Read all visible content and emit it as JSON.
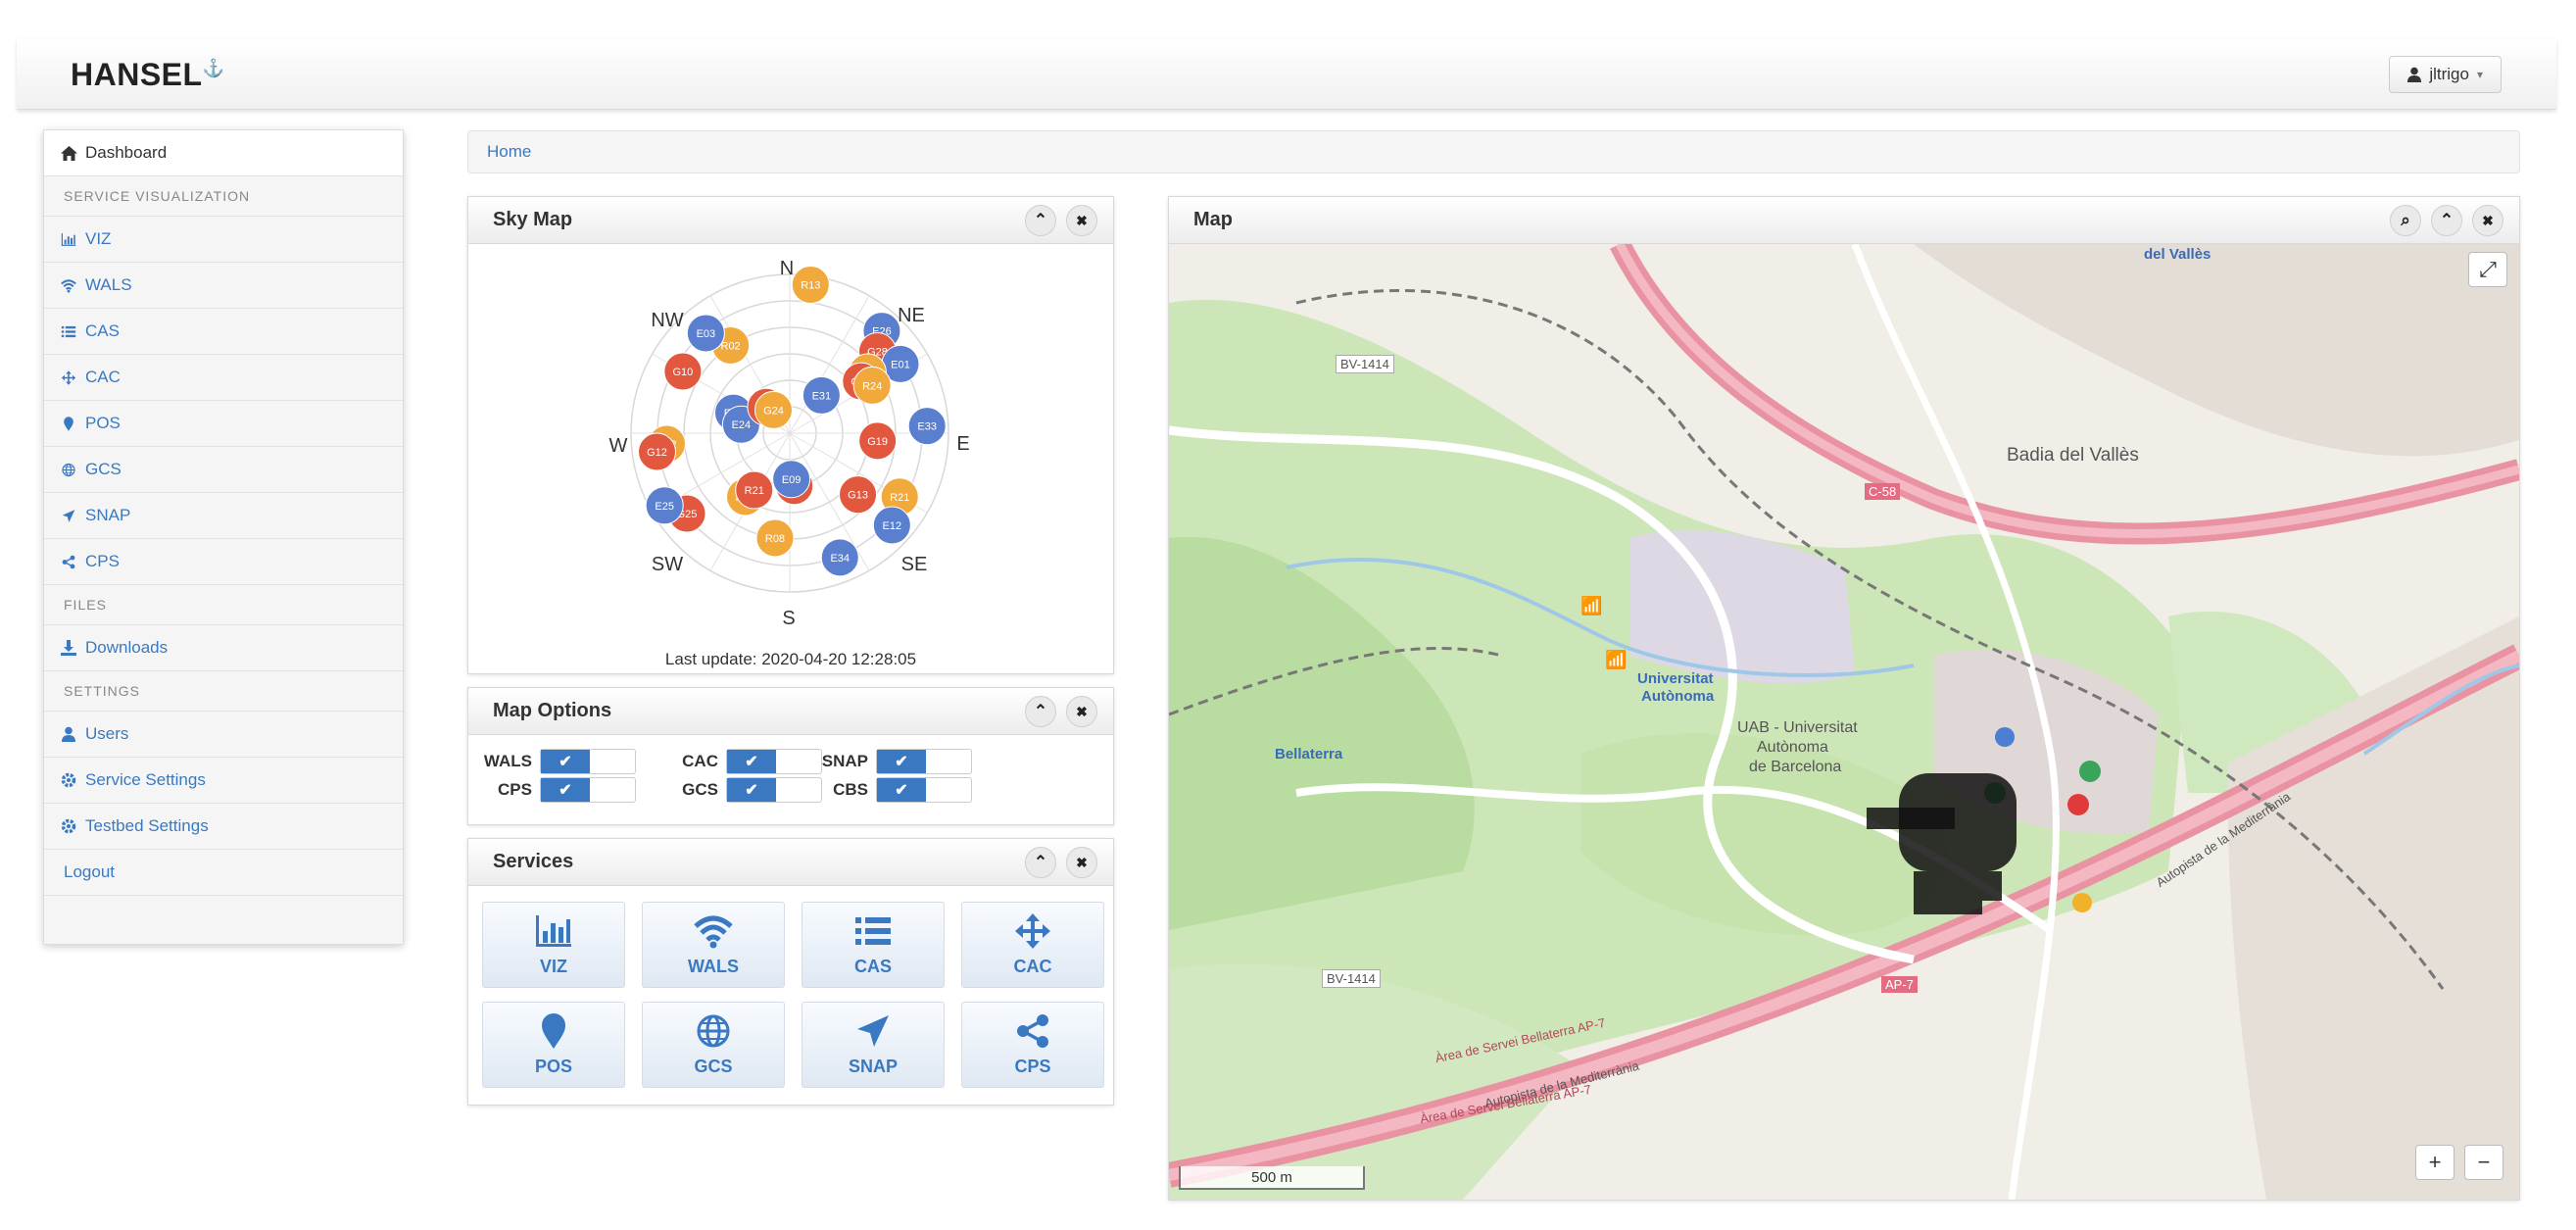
{
  "app": {
    "brand": "HANSEL",
    "brand_mark": "⚓"
  },
  "user": {
    "name": "jltrigo",
    "caret": "▾"
  },
  "sidebar": {
    "dashboard": "Dashboard",
    "section_service_vis": "SERVICE VISUALIZATION",
    "items": [
      {
        "label": "VIZ",
        "icon": "bar-chart-icon"
      },
      {
        "label": "WALS",
        "icon": "wifi-icon"
      },
      {
        "label": "CAS",
        "icon": "list-icon"
      },
      {
        "label": "CAC",
        "icon": "move-icon"
      },
      {
        "label": "POS",
        "icon": "map-pin-icon"
      },
      {
        "label": "GCS",
        "icon": "globe-icon"
      },
      {
        "label": "SNAP",
        "icon": "send-icon"
      },
      {
        "label": "CPS",
        "icon": "share-icon"
      }
    ],
    "section_files": "FILES",
    "downloads": "Downloads",
    "section_settings": "SETTINGS",
    "users": "Users",
    "service_settings": "Service Settings",
    "testbed_settings": "Testbed Settings",
    "logout": "Logout"
  },
  "breadcrumb": {
    "home": "Home"
  },
  "skymap": {
    "title": "Sky Map",
    "directions": {
      "n": "N",
      "ne": "NE",
      "e": "E",
      "se": "SE",
      "s": "S",
      "sw": "SW",
      "w": "W",
      "nw": "NW"
    },
    "satellites": [
      {
        "id": "R13",
        "az": 8,
        "el": 5,
        "color": "#f2a93b"
      },
      {
        "id": "E26",
        "az": 42,
        "el": 12,
        "color": "#5b7fcf"
      },
      {
        "id": "G28",
        "az": 47,
        "el": 22,
        "color": "#e2583e"
      },
      {
        "id": "E01",
        "az": 58,
        "el": 16,
        "color": "#5b7fcf"
      },
      {
        "id": "R10",
        "az": 52,
        "el": 34,
        "color": "#f2a93b"
      },
      {
        "id": "G32",
        "az": 54,
        "el": 40,
        "color": "#e2583e"
      },
      {
        "id": "R24",
        "az": 60,
        "el": 36,
        "color": "#f2a93b"
      },
      {
        "id": "E31",
        "az": 40,
        "el": 62,
        "color": "#5b7fcf"
      },
      {
        "id": "E33",
        "az": 87,
        "el": 12,
        "color": "#5b7fcf"
      },
      {
        "id": "G19",
        "az": 95,
        "el": 40,
        "color": "#e2583e"
      },
      {
        "id": "R21",
        "az": 120,
        "el": 18,
        "color": "#f2a93b"
      },
      {
        "id": "E12",
        "az": 132,
        "el": 12,
        "color": "#5b7fcf"
      },
      {
        "id": "G13",
        "az": 132,
        "el": 38,
        "color": "#e2583e"
      },
      {
        "id": "E34",
        "az": 158,
        "el": 14,
        "color": "#5b7fcf"
      },
      {
        "id": "G15",
        "az": 175,
        "el": 60,
        "color": "#e2583e"
      },
      {
        "id": "E09",
        "az": 178,
        "el": 64,
        "color": "#5b7fcf"
      },
      {
        "id": "R08",
        "az": 188,
        "el": 30,
        "color": "#f2a93b"
      },
      {
        "id": "G25",
        "az": 232,
        "el": 16,
        "color": "#e2583e"
      },
      {
        "id": "E25",
        "az": 240,
        "el": 8,
        "color": "#5b7fcf"
      },
      {
        "id": "R23",
        "az": 215,
        "el": 46,
        "color": "#f2a93b"
      },
      {
        "id": "R21",
        "az": 212,
        "el": 52,
        "color": "#e2583e"
      },
      {
        "id": "R12",
        "az": 265,
        "el": 20,
        "color": "#f2a93b"
      },
      {
        "id": "G12",
        "az": 262,
        "el": 14,
        "color": "#e2583e"
      },
      {
        "id": "E05",
        "az": 290,
        "el": 56,
        "color": "#5b7fcf"
      },
      {
        "id": "E24",
        "az": 280,
        "el": 62,
        "color": "#5b7fcf"
      },
      {
        "id": "G11",
        "az": 318,
        "el": 70,
        "color": "#e2583e"
      },
      {
        "id": "G24",
        "az": 325,
        "el": 74,
        "color": "#f2a93b"
      },
      {
        "id": "G10",
        "az": 300,
        "el": 20,
        "color": "#e2583e"
      },
      {
        "id": "R02",
        "az": 326,
        "el": 30,
        "color": "#f2a93b"
      },
      {
        "id": "E03",
        "az": 320,
        "el": 16,
        "color": "#5b7fcf"
      }
    ],
    "last_update": "Last update: 2020-04-20 12:28:05"
  },
  "map_options": {
    "title": "Map Options",
    "options": [
      {
        "label": "WALS",
        "checked": true
      },
      {
        "label": "CAC",
        "checked": true
      },
      {
        "label": "SNAP",
        "checked": true
      },
      {
        "label": "CPS",
        "checked": true
      },
      {
        "label": "GCS",
        "checked": true
      },
      {
        "label": "CBS",
        "checked": true
      }
    ],
    "check_glyph": "✔"
  },
  "services": {
    "title": "Services",
    "tiles": [
      {
        "label": "VIZ",
        "icon": "bar-chart-icon"
      },
      {
        "label": "WALS",
        "icon": "wifi-icon"
      },
      {
        "label": "CAS",
        "icon": "list-icon"
      },
      {
        "label": "CAC",
        "icon": "move-icon"
      },
      {
        "label": "POS",
        "icon": "map-pin-icon"
      },
      {
        "label": "GCS",
        "icon": "globe-icon"
      },
      {
        "label": "SNAP",
        "icon": "send-icon"
      },
      {
        "label": "CPS",
        "icon": "share-icon"
      }
    ]
  },
  "map": {
    "title": "Map",
    "place_labels": {
      "badia": "Badia del Vallès",
      "uab_1": "UAB - Universitat",
      "uab_2": "Autònoma",
      "uab_3": "de Barcelona",
      "universitat_1": "Universitat",
      "universitat_2": "Autònoma",
      "bellaterra": "Bellaterra",
      "del_valles": "del Vallès",
      "bv1414_a": "BV-1414",
      "bv1414_b": "BV-1414",
      "c58": "C-58",
      "ap7": "AP-7",
      "autopista_1": "Autopista de la Mediterrània",
      "autopista_2": "Autopista de la Mediterrània",
      "area_1": "Àrea de Servei Bellaterra AP-7",
      "area_2": "Àrea de Servei Bellaterra AP-7"
    },
    "scale": "500 m",
    "zoom_in": "+",
    "zoom_out": "−",
    "fullscreen": "⤢"
  },
  "panel_buttons": {
    "collapse": "⌃",
    "close": "✖",
    "zoom": "⌕"
  }
}
